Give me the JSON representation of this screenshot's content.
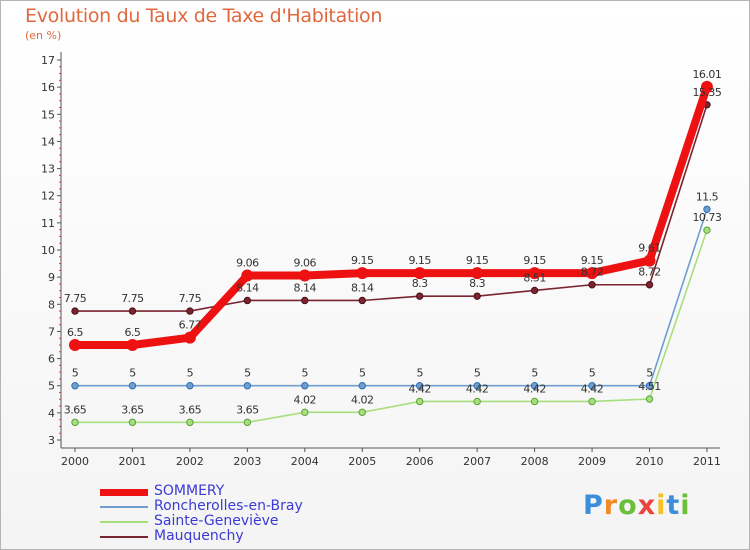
{
  "chart_data": {
    "type": "line",
    "title": "Evolution du Taux de Taxe d'Habitation",
    "unit_label": "(en %)",
    "x": [
      "2000",
      "2001",
      "2002",
      "2003",
      "2004",
      "2005",
      "2006",
      "2007",
      "2008",
      "2009",
      "2010",
      "2011"
    ],
    "yticks": [
      "3",
      "4",
      "5",
      "6",
      "7",
      "8",
      "9",
      "10",
      "11",
      "12",
      "13",
      "14",
      "15",
      "16",
      "17"
    ],
    "ylim": [
      3,
      17
    ],
    "grid": false,
    "series": [
      {
        "name": "Mauquenchy",
        "color": "#7a2430",
        "values": [
          7.75,
          7.75,
          7.75,
          8.14,
          8.14,
          8.14,
          8.3,
          8.3,
          8.51,
          8.72,
          8.72,
          15.35
        ],
        "labels": [
          "7.75",
          "7.75",
          "7.75",
          "8.14",
          "8.14",
          "8.14",
          "8.3",
          "8.3",
          "8.51",
          "8.72",
          "8.72",
          "15.35"
        ]
      },
      {
        "name": "Roncherolles-en-Bray",
        "color": "#6f9ed0",
        "values": [
          5,
          5,
          5,
          5,
          5,
          5,
          5,
          5,
          5,
          5,
          5,
          11.5
        ],
        "labels": [
          "5",
          "5",
          "5",
          "5",
          "5",
          "5",
          "5",
          "5",
          "5",
          "5",
          "5",
          "11.5"
        ]
      },
      {
        "name": "Sainte-Geneviève",
        "color": "#a8df7d",
        "values": [
          3.65,
          3.65,
          3.65,
          3.65,
          4.02,
          4.02,
          4.42,
          4.42,
          4.42,
          4.42,
          4.51,
          10.73
        ],
        "labels": [
          "3.65",
          "3.65",
          "3.65",
          "3.65",
          "4.02",
          "4.02",
          "4.42",
          "4.42",
          "4.42",
          "4.42",
          "4.51",
          "10.73"
        ]
      },
      {
        "name": "SOMMERY",
        "color": "#ee1111",
        "values": [
          6.5,
          6.5,
          6.77,
          9.06,
          9.06,
          9.15,
          9.15,
          9.15,
          9.15,
          9.15,
          9.61,
          16.01
        ],
        "labels": [
          "6.5",
          "6.5",
          "6.77",
          "9.06",
          "9.06",
          "9.15",
          "9.15",
          "9.15",
          "9.15",
          "9.15",
          "9.61",
          "16.01"
        ]
      }
    ],
    "legend": {
      "position": "bottom-left",
      "entries": [
        "SOMMERY",
        "Roncherolles-en-Bray",
        "Sainte-Geneviève",
        "Mauquenchy"
      ]
    }
  },
  "brand": {
    "letters": [
      "P",
      "r",
      "o",
      "x",
      "i",
      "t",
      "i"
    ],
    "colors": [
      "#3a8fd8",
      "#f08a24",
      "#6cbf3a",
      "#e8453c",
      "#f5c125",
      "#3a8fd8",
      "#6cbf3a"
    ]
  }
}
